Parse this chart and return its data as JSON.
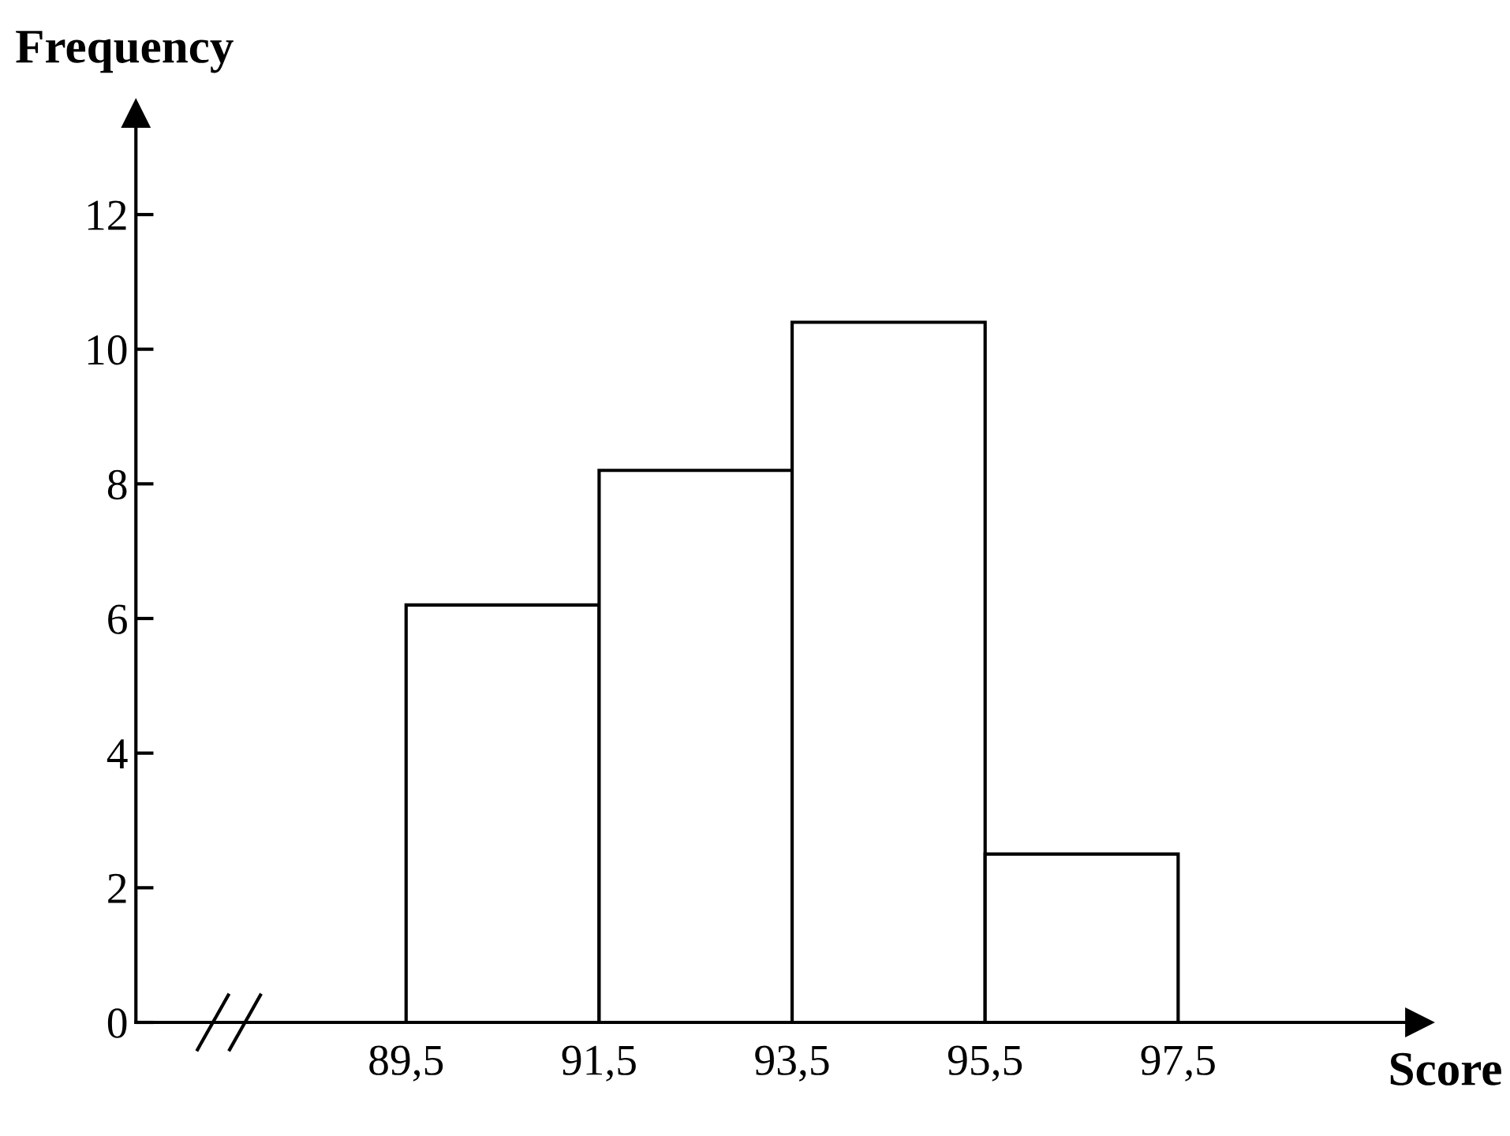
{
  "chart_data": {
    "type": "histogram",
    "xlabel": "Score",
    "ylabel": "Frequency",
    "bins": [
      89.5,
      91.5,
      93.5,
      95.5,
      97.5
    ],
    "values": [
      6.2,
      8.2,
      10.4,
      2.5
    ],
    "color": "#ffffff",
    "xlim": [
      86.7,
      100
    ],
    "xticks": [
      {
        "value": 89.5,
        "label": "89,5"
      },
      {
        "value": 91.5,
        "label": "91,5"
      },
      {
        "value": 93.5,
        "label": "93,5"
      },
      {
        "value": 95.5,
        "label": "95,5"
      },
      {
        "value": 97.5,
        "label": "97,5"
      }
    ],
    "ylim": [
      0,
      13.5
    ],
    "yticks": [
      0,
      2,
      4,
      6,
      8,
      10,
      12
    ],
    "grid": false,
    "legend": false
  }
}
